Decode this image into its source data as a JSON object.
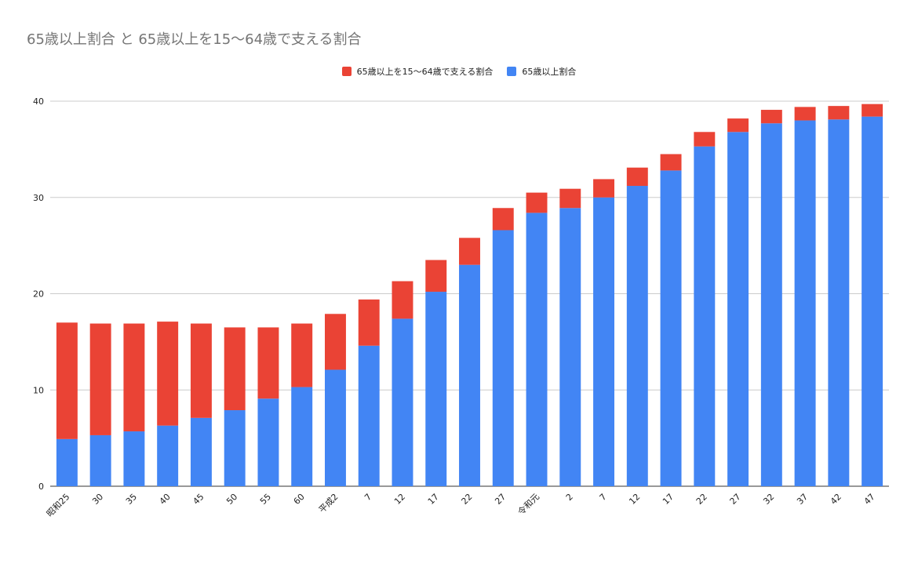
{
  "chart_data": {
    "type": "bar",
    "stacked": true,
    "title": "65歳以上割合 と 65歳以上を15〜64歳で支える割合",
    "xlabel": "",
    "ylabel": "",
    "ylim": [
      0,
      40
    ],
    "yticks": [
      0,
      10,
      20,
      30,
      40
    ],
    "grid": true,
    "legend_position": "top",
    "categories": [
      "昭和25",
      "30",
      "35",
      "40",
      "45",
      "50",
      "55",
      "60",
      "平成2",
      "7",
      "12",
      "17",
      "22",
      "27",
      "令和元",
      "2",
      "7",
      "12",
      "17",
      "22",
      "27",
      "32",
      "37",
      "42",
      "47"
    ],
    "series": [
      {
        "name": "65歳以上割合",
        "color": "#4285f4",
        "values": [
          4.9,
          5.3,
          5.7,
          6.3,
          7.1,
          7.9,
          9.1,
          10.3,
          12.1,
          14.6,
          17.4,
          20.2,
          23.0,
          26.6,
          28.4,
          28.9,
          30.0,
          31.2,
          32.8,
          35.3,
          36.8,
          37.7,
          38.0,
          38.1,
          38.4
        ]
      },
      {
        "name": "65歳以上を15〜64歳で支える割合",
        "color": "#ea4335",
        "values": [
          12.1,
          11.6,
          11.2,
          10.8,
          9.8,
          8.6,
          7.4,
          6.6,
          5.8,
          4.8,
          3.9,
          3.3,
          2.8,
          2.3,
          2.1,
          2.0,
          1.9,
          1.9,
          1.7,
          1.5,
          1.4,
          1.4,
          1.4,
          1.4,
          1.3
        ]
      }
    ]
  }
}
